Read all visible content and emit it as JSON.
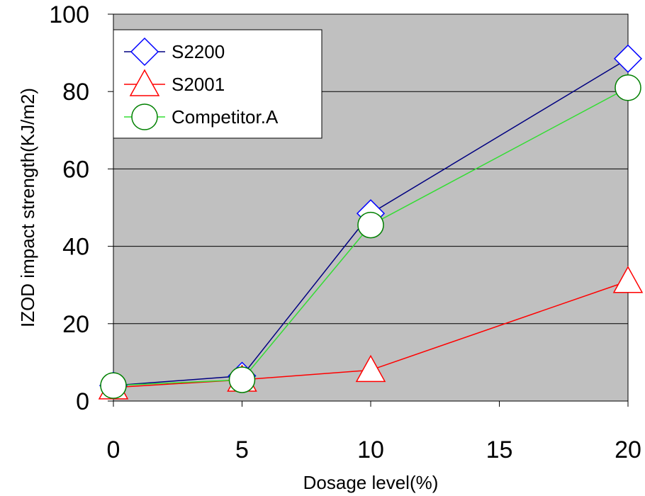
{
  "chart_data": {
    "type": "line",
    "title": "",
    "xlabel": "Dosage level(%)",
    "ylabel": "IZOD impact strength(KJ/m2)",
    "xlim": [
      0,
      20
    ],
    "ylim": [
      0,
      100
    ],
    "x_ticks": [
      0,
      5,
      10,
      15,
      20
    ],
    "y_ticks": [
      0,
      20,
      40,
      60,
      80,
      100
    ],
    "x_tick_labels": [
      "0",
      "5",
      "10",
      "15",
      "20"
    ],
    "y_tick_labels": [
      "0",
      "20",
      "40",
      "60",
      "80",
      "100"
    ],
    "grid": "horizontal",
    "legend_position": "top-left",
    "plot_background": "#c0c0c0",
    "series": [
      {
        "name": "S2200",
        "x": [
          0,
          5,
          10,
          20
        ],
        "values": [
          4,
          6.5,
          48.5,
          88.5
        ],
        "color": "#000080",
        "marker_color": "#0000ff",
        "marker": "diamond"
      },
      {
        "name": "S2001",
        "x": [
          0,
          5,
          10,
          20
        ],
        "values": [
          3.5,
          5.5,
          8,
          31
        ],
        "color": "#ff0000",
        "marker_color": "#ff0000",
        "marker": "triangle"
      },
      {
        "name": "Competitor.A",
        "x": [
          0,
          5,
          10,
          20
        ],
        "values": [
          4,
          5.5,
          45.5,
          81
        ],
        "color": "#33dd33",
        "marker_color": "#008000",
        "marker": "circle"
      }
    ]
  }
}
